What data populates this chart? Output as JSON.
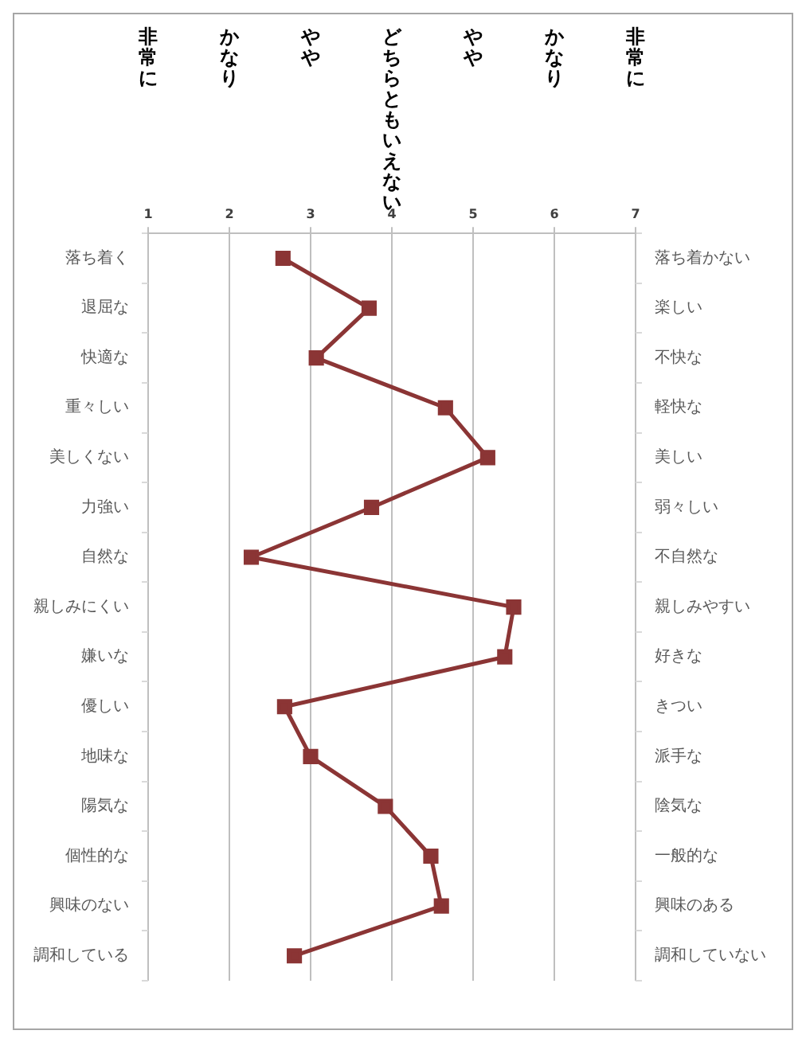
{
  "chart_data": {
    "type": "line",
    "orientation": "horizontal",
    "categories": [
      "落ち着く",
      "退屈な",
      "快適な",
      "重々しい",
      "美しくない",
      "力強い",
      "自然な",
      "親しみにくい",
      "嫌いな",
      "優しい",
      "地味な",
      "陽気な",
      "個性的な",
      "興味のない",
      "調和している"
    ],
    "y2_categories": [
      "落ち着かない",
      "楽しい",
      "不快な",
      "軽快な",
      "美しい",
      "弱々しい",
      "不自然な",
      "親しみやすい",
      "好きな",
      "きつい",
      "派手な",
      "陰気な",
      "一般的な",
      "興味のある",
      "調和していない"
    ],
    "series": [
      {
        "color": "#8b3535",
        "values": [
          2.66,
          3.72,
          3.07,
          4.66,
          5.18,
          3.75,
          2.27,
          5.5,
          5.39,
          2.68,
          3.0,
          3.92,
          4.48,
          4.61,
          2.8
        ]
      }
    ],
    "marker": "square",
    "xlim": [
      1,
      7
    ],
    "xticks": [
      1,
      2,
      3,
      4,
      5,
      6,
      7
    ],
    "annotations": [
      "非常に",
      "かなり",
      "やや",
      "どちらともいえない",
      "やや",
      "かなり",
      "非常に"
    ],
    "grid": "x",
    "legend": false
  }
}
